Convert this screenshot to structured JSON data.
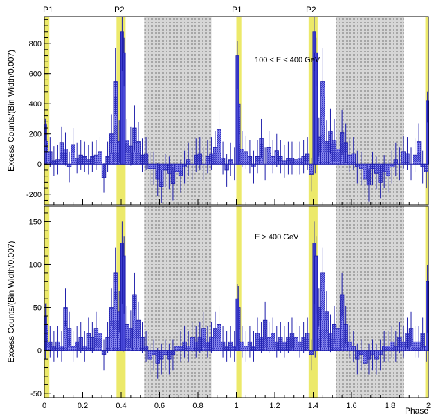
{
  "colors": {
    "histogram_fill": "#4848d8",
    "histogram_line": "#1c1caa",
    "on_region": "#ece96a",
    "off_region": "#bdbdbd",
    "axis": "#000000"
  },
  "phase_markers": [
    "P1",
    "P2",
    "P1",
    "P2"
  ],
  "x_axis": {
    "label": "Phase",
    "tick_labels": [
      "0",
      "0.2",
      "0.4",
      "0.6",
      "0.8",
      "1",
      "1.2",
      "1.4",
      "1.6",
      "1.8",
      "2"
    ]
  },
  "chart_data": [
    {
      "type": "bar",
      "annotation": "100 < E < 400 GeV",
      "ylabel": "Excess Counts/(Bin Width/0.007)",
      "xlim": [
        0,
        2
      ],
      "ylim": [
        -270,
        980
      ],
      "yticks": [
        "-200",
        "0",
        "200",
        "400",
        "600",
        "800"
      ],
      "on_regions": [
        [
          0,
          0.026
        ],
        [
          0.376,
          0.423
        ],
        [
          1.0,
          1.026
        ],
        [
          1.376,
          1.423
        ],
        [
          1.984,
          2.0
        ]
      ],
      "off_regions": [
        [
          0.52,
          0.87
        ],
        [
          1.52,
          1.87
        ]
      ],
      "x_start": 0,
      "bin_width": 0.02,
      "values": [
        150,
        80,
        20,
        30,
        140,
        100,
        -20,
        130,
        40,
        60,
        50,
        30,
        50,
        60,
        80,
        -90,
        50,
        200,
        550,
        150,
        200,
        160,
        120,
        240,
        150,
        60,
        70,
        -30,
        -30,
        -100,
        -150,
        -40,
        -60,
        -130,
        -50,
        -80,
        -20,
        30,
        0,
        60,
        70,
        0,
        50,
        70,
        110,
        230,
        40,
        -40,
        30,
        0,
        400,
        100,
        80,
        50,
        -20,
        50,
        170,
        0,
        110,
        50,
        90,
        50,
        20,
        40,
        40,
        30,
        40,
        50,
        70,
        -70,
        50,
        180,
        550,
        150,
        220,
        160,
        100,
        210,
        140,
        60,
        70,
        -20,
        -30,
        -100,
        -140,
        -30,
        -60,
        -120,
        -50,
        -80,
        -20,
        30,
        0,
        80,
        70,
        0,
        60,
        150,
        -20,
        -50,
        350
      ],
      "errors": [
        120,
        100,
        100,
        100,
        110,
        110,
        100,
        110,
        100,
        100,
        100,
        100,
        100,
        100,
        100,
        100,
        100,
        130,
        220,
        140,
        150,
        140,
        130,
        150,
        130,
        110,
        110,
        110,
        110,
        110,
        110,
        110,
        110,
        110,
        110,
        110,
        110,
        110,
        110,
        110,
        110,
        110,
        110,
        110,
        110,
        130,
        110,
        110,
        110,
        110,
        180,
        120,
        110,
        110,
        110,
        110,
        130,
        110,
        110,
        110,
        110,
        110,
        110,
        110,
        110,
        110,
        110,
        110,
        110,
        110,
        110,
        130,
        220,
        140,
        150,
        140,
        130,
        150,
        130,
        110,
        110,
        110,
        110,
        110,
        110,
        110,
        110,
        110,
        110,
        110,
        110,
        110,
        110,
        110,
        110,
        110,
        110,
        120,
        110,
        110,
        170
      ],
      "fine_peaks": [
        [
          0.005,
          260
        ],
        [
          0.405,
          880
        ],
        [
          0.415,
          740
        ],
        [
          1.005,
          720
        ],
        [
          1.405,
          880
        ],
        [
          1.415,
          740
        ],
        [
          1.995,
          420
        ]
      ]
    },
    {
      "type": "bar",
      "annotation": "E > 400 GeV",
      "ylabel": "Excess Counts/(Bin Width/0.007)",
      "xlim": [
        0,
        2
      ],
      "ylim": [
        -55,
        168
      ],
      "yticks": [
        "-50",
        "0",
        "50",
        "100",
        "150"
      ],
      "on_regions": [
        [
          0,
          0.026
        ],
        [
          0.376,
          0.423
        ],
        [
          1.0,
          1.026
        ],
        [
          1.376,
          1.423
        ],
        [
          1.984,
          2.0
        ]
      ],
      "off_regions": [
        [
          0.52,
          0.87
        ],
        [
          1.52,
          1.87
        ]
      ],
      "x_start": 0,
      "bin_width": 0.02,
      "values": [
        30,
        10,
        5,
        10,
        5,
        50,
        25,
        5,
        10,
        15,
        5,
        20,
        15,
        25,
        20,
        -5,
        15,
        50,
        90,
        45,
        20,
        30,
        25,
        65,
        35,
        15,
        5,
        -10,
        -5,
        -15,
        -10,
        -5,
        -10,
        -5,
        5,
        5,
        10,
        5,
        15,
        10,
        15,
        25,
        10,
        15,
        25,
        30,
        10,
        5,
        10,
        5,
        50,
        10,
        5,
        10,
        5,
        20,
        15,
        35,
        15,
        20,
        10,
        15,
        10,
        15,
        20,
        15,
        10,
        15,
        20,
        -5,
        10,
        50,
        90,
        45,
        20,
        30,
        25,
        65,
        30,
        10,
        5,
        -10,
        -5,
        -15,
        -10,
        -5,
        -10,
        -5,
        5,
        5,
        10,
        5,
        15,
        10,
        20,
        25,
        10,
        10,
        20,
        5,
        35
      ],
      "errors": [
        25,
        18,
        18,
        18,
        18,
        22,
        20,
        18,
        18,
        18,
        18,
        18,
        18,
        20,
        18,
        18,
        18,
        22,
        30,
        24,
        22,
        22,
        22,
        25,
        22,
        18,
        18,
        18,
        18,
        18,
        18,
        18,
        18,
        18,
        18,
        18,
        18,
        18,
        18,
        18,
        18,
        20,
        18,
        18,
        20,
        22,
        18,
        18,
        18,
        18,
        25,
        18,
        18,
        18,
        18,
        18,
        18,
        22,
        18,
        18,
        18,
        18,
        18,
        18,
        18,
        18,
        18,
        18,
        18,
        18,
        18,
        22,
        30,
        24,
        22,
        22,
        22,
        25,
        22,
        18,
        18,
        18,
        18,
        18,
        18,
        18,
        18,
        18,
        18,
        18,
        18,
        18,
        18,
        18,
        18,
        20,
        18,
        18,
        18,
        18,
        25
      ],
      "fine_peaks": [
        [
          0.005,
          40
        ],
        [
          0.405,
          125
        ],
        [
          0.415,
          110
        ],
        [
          1.005,
          60
        ],
        [
          1.405,
          125
        ],
        [
          1.415,
          110
        ],
        [
          1.995,
          80
        ]
      ]
    }
  ]
}
